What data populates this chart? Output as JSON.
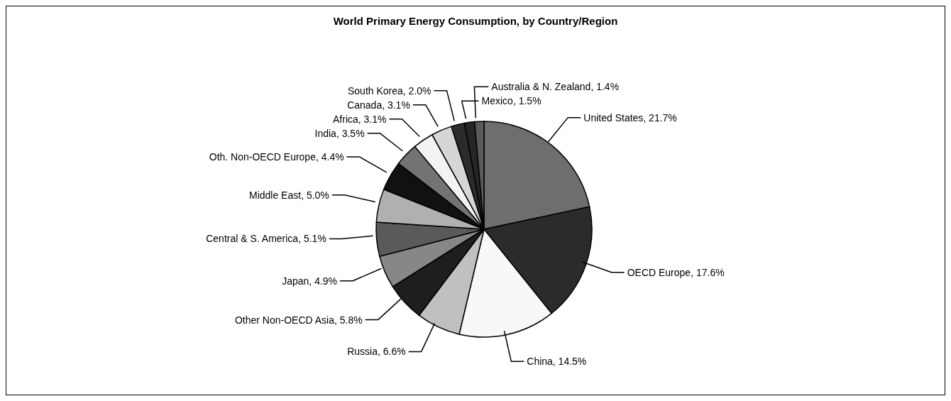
{
  "chart_data": {
    "type": "pie",
    "title": "World Primary Energy Consumption, by Country/Region",
    "categories": [
      "United States",
      "OECD Europe",
      "China",
      "Russia",
      "Other Non-OECD Asia",
      "Japan",
      "Central & S. America",
      "Middle East",
      "Oth. Non-OECD Europe",
      "India",
      "Africa",
      "Canada",
      "South Korea",
      "Mexico",
      "Australia & N. Zealand"
    ],
    "values": [
      21.7,
      17.6,
      14.5,
      6.6,
      5.8,
      4.9,
      5.1,
      5.0,
      4.4,
      3.5,
      3.1,
      3.1,
      2.0,
      1.5,
      1.4
    ],
    "colors": [
      "#6e6e6e",
      "#2b2b2b",
      "#f8f8f8",
      "#c0c0c0",
      "#1e1e1e",
      "#878787",
      "#5a5a5a",
      "#b0b0b0",
      "#111111",
      "#737373",
      "#f3f3f3",
      "#d6d6d6",
      "#2b2b2b",
      "#262626",
      "#5a5a5a"
    ],
    "value_labels": [
      "21.7%",
      "17.6%",
      "14.5%",
      "6.6%",
      "5.8%",
      "4.9%",
      "5.1%",
      "5.0%",
      "4.4%",
      "3.5%",
      "3.1%",
      "3.1%",
      "2.0%",
      "1.5%",
      "1.4%"
    ],
    "legend": false
  }
}
